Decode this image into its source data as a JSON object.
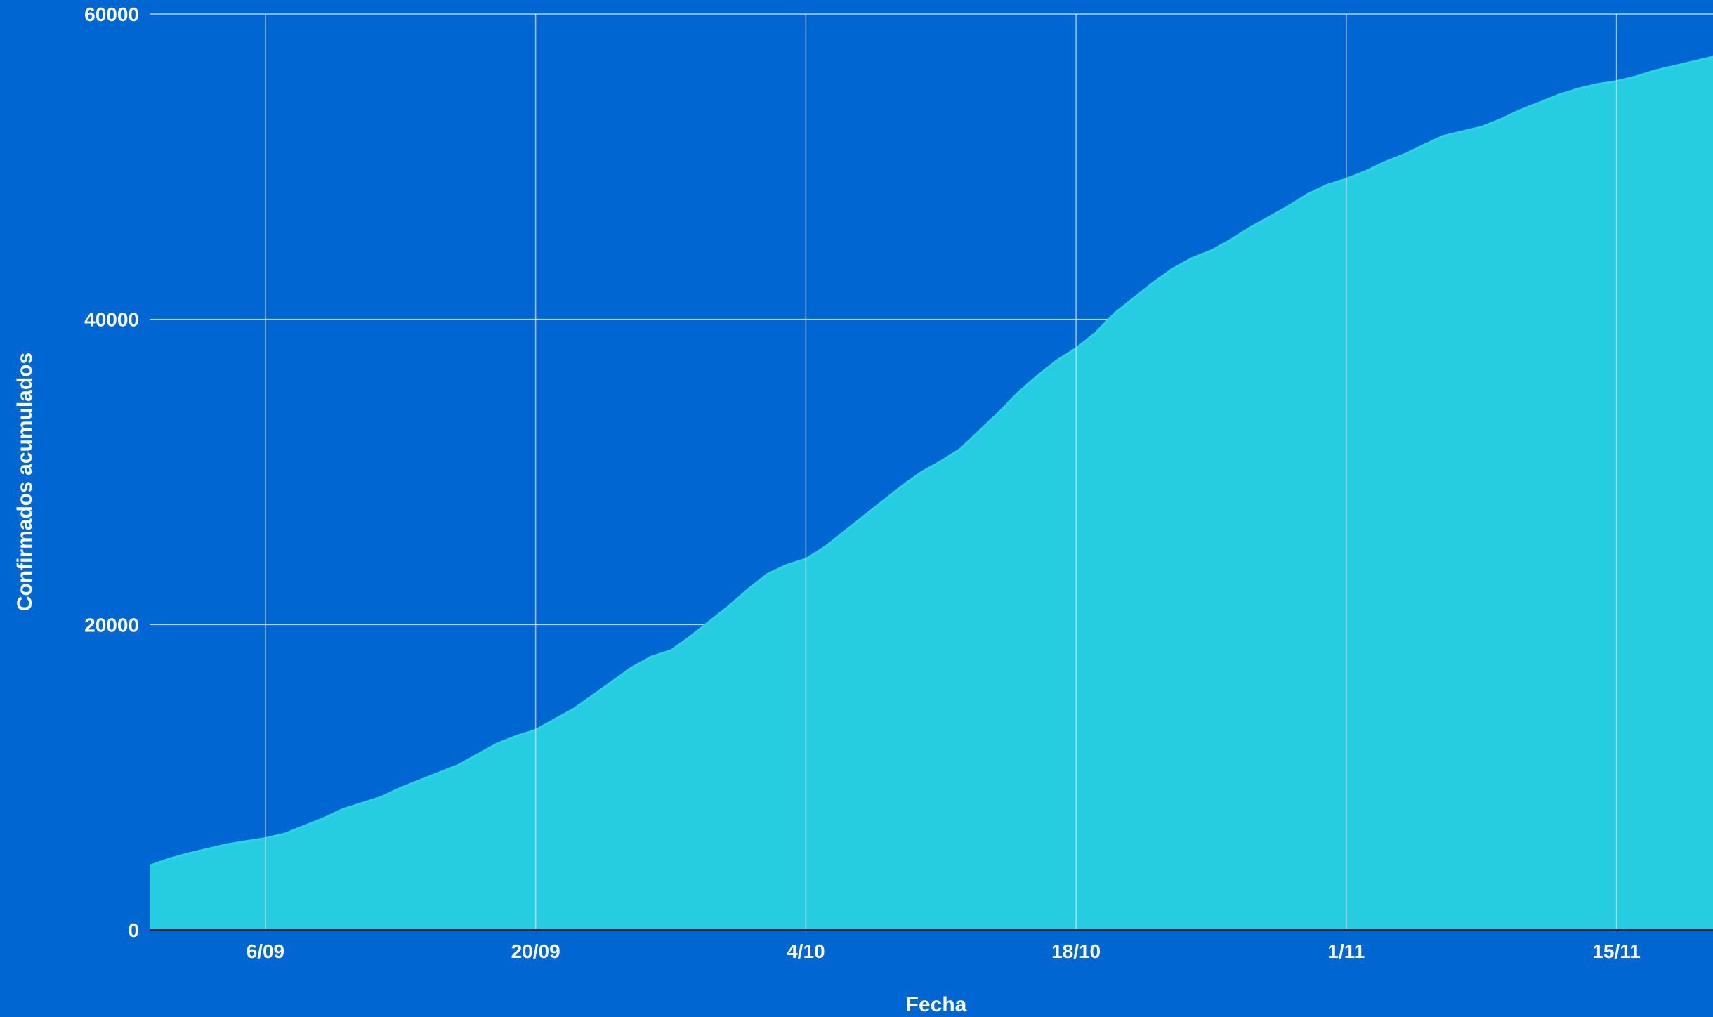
{
  "chart_data": {
    "type": "area",
    "xlabel": "Fecha",
    "ylabel": "Confirmados acumulados",
    "ylim": [
      0,
      60000
    ],
    "yticks": [
      0,
      20000,
      40000,
      60000
    ],
    "xlim": [
      "2020-08-31",
      "2020-11-20"
    ],
    "xticks": [
      {
        "date": "2020-09-06",
        "label": "6/09"
      },
      {
        "date": "2020-09-20",
        "label": "20/09"
      },
      {
        "date": "2020-10-04",
        "label": "4/10"
      },
      {
        "date": "2020-10-18",
        "label": "18/10"
      },
      {
        "date": "2020-11-01",
        "label": "1/11"
      },
      {
        "date": "2020-11-15",
        "label": "15/11"
      }
    ],
    "grid": true,
    "colors": {
      "background": "#0066D1",
      "area": "#26CCE0",
      "line": "#2DD4E3",
      "grid": "#D6E4F5",
      "baseline": "#1A2A40"
    },
    "series": [
      {
        "points": [
          [
            "2020-08-31",
            4200
          ],
          [
            "2020-09-01",
            4650
          ],
          [
            "2020-09-02",
            5000
          ],
          [
            "2020-09-03",
            5300
          ],
          [
            "2020-09-04",
            5600
          ],
          [
            "2020-09-05",
            5800
          ],
          [
            "2020-09-06",
            6000
          ],
          [
            "2020-09-07",
            6300
          ],
          [
            "2020-09-08",
            6800
          ],
          [
            "2020-09-09",
            7300
          ],
          [
            "2020-09-10",
            7900
          ],
          [
            "2020-09-11",
            8300
          ],
          [
            "2020-09-12",
            8700
          ],
          [
            "2020-09-13",
            9300
          ],
          [
            "2020-09-14",
            9800
          ],
          [
            "2020-09-15",
            10300
          ],
          [
            "2020-09-16",
            10800
          ],
          [
            "2020-09-17",
            11500
          ],
          [
            "2020-09-18",
            12200
          ],
          [
            "2020-09-19",
            12700
          ],
          [
            "2020-09-20",
            13100
          ],
          [
            "2020-09-21",
            13800
          ],
          [
            "2020-09-22",
            14500
          ],
          [
            "2020-09-23",
            15400
          ],
          [
            "2020-09-24",
            16300
          ],
          [
            "2020-09-25",
            17200
          ],
          [
            "2020-09-26",
            17900
          ],
          [
            "2020-09-27",
            18300
          ],
          [
            "2020-09-28",
            19200
          ],
          [
            "2020-09-29",
            20200
          ],
          [
            "2020-09-30",
            21200
          ],
          [
            "2020-10-01",
            22300
          ],
          [
            "2020-10-02",
            23300
          ],
          [
            "2020-10-03",
            23900
          ],
          [
            "2020-10-04",
            24300
          ],
          [
            "2020-10-05",
            25100
          ],
          [
            "2020-10-06",
            26100
          ],
          [
            "2020-10-07",
            27100
          ],
          [
            "2020-10-08",
            28100
          ],
          [
            "2020-10-09",
            29100
          ],
          [
            "2020-10-10",
            30000
          ],
          [
            "2020-10-11",
            30700
          ],
          [
            "2020-10-12",
            31500
          ],
          [
            "2020-10-13",
            32700
          ],
          [
            "2020-10-14",
            33900
          ],
          [
            "2020-10-15",
            35200
          ],
          [
            "2020-10-16",
            36300
          ],
          [
            "2020-10-17",
            37300
          ],
          [
            "2020-10-18",
            38100
          ],
          [
            "2020-10-19",
            39100
          ],
          [
            "2020-10-20",
            40400
          ],
          [
            "2020-10-21",
            41400
          ],
          [
            "2020-10-22",
            42400
          ],
          [
            "2020-10-23",
            43300
          ],
          [
            "2020-10-24",
            44000
          ],
          [
            "2020-10-25",
            44500
          ],
          [
            "2020-10-26",
            45200
          ],
          [
            "2020-10-27",
            46000
          ],
          [
            "2020-10-28",
            46700
          ],
          [
            "2020-10-29",
            47400
          ],
          [
            "2020-10-30",
            48200
          ],
          [
            "2020-10-31",
            48800
          ],
          [
            "2020-11-01",
            49200
          ],
          [
            "2020-11-02",
            49700
          ],
          [
            "2020-11-03",
            50300
          ],
          [
            "2020-11-04",
            50800
          ],
          [
            "2020-11-05",
            51400
          ],
          [
            "2020-11-06",
            52000
          ],
          [
            "2020-11-07",
            52300
          ],
          [
            "2020-11-08",
            52600
          ],
          [
            "2020-11-09",
            53100
          ],
          [
            "2020-11-10",
            53700
          ],
          [
            "2020-11-11",
            54200
          ],
          [
            "2020-11-12",
            54700
          ],
          [
            "2020-11-13",
            55100
          ],
          [
            "2020-11-14",
            55400
          ],
          [
            "2020-11-15",
            55600
          ],
          [
            "2020-11-16",
            55900
          ],
          [
            "2020-11-17",
            56300
          ],
          [
            "2020-11-18",
            56600
          ],
          [
            "2020-11-19",
            56900
          ],
          [
            "2020-11-20",
            57200
          ]
        ]
      }
    ]
  }
}
